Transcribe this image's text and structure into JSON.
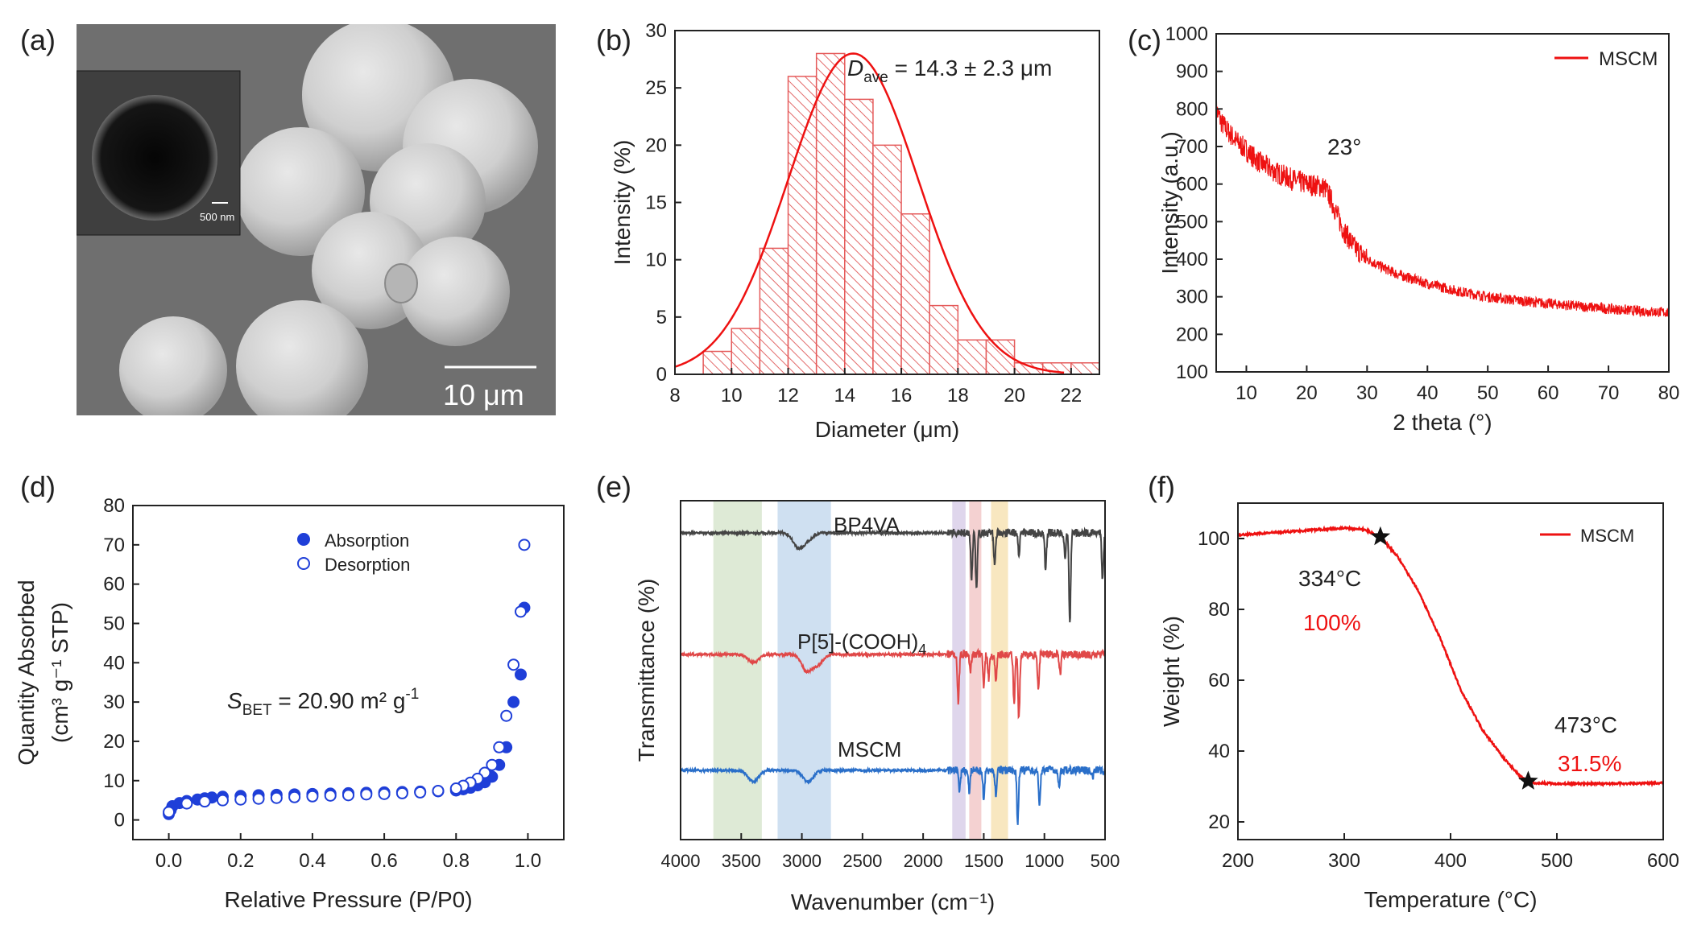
{
  "panels": {
    "a": {
      "label": "(a)",
      "scalebar": "10 μm",
      "inset_scalebar": "500 nm"
    },
    "b": {
      "label": "(b)",
      "annotation_main": "D",
      "annotation_sub": "ave",
      "annotation_rest": " = 14.3 ± 2.3 μm"
    },
    "c": {
      "label": "(c)",
      "annotation": "23°"
    },
    "d": {
      "label": "(d)",
      "annotation_main": "S",
      "annotation_sub": "BET",
      "annotation_rest": " = 20.90 m² g",
      "annotation_sup": "-1"
    },
    "e": {
      "label": "(e)"
    },
    "f": {
      "label": "(f)",
      "annotations": {
        "p1_temp": "334°C",
        "p1_pct": "100%",
        "p2_temp": "473°C",
        "p2_pct": "31.5%"
      }
    }
  },
  "colors": {
    "red": "#ee1111",
    "blue_marker": "#1f3fd8",
    "black": "#222222",
    "ftir_red": "#e04848",
    "ftir_blue": "#2a6fc9",
    "ftir_black": "#444444"
  },
  "chart_data": [
    {
      "panel": "b",
      "type": "bar",
      "xlabel": "Diameter (μm)",
      "ylabel": "Intensity (%)",
      "xlim": [
        8,
        23
      ],
      "ylim": [
        0,
        30
      ],
      "xticks": [
        8,
        10,
        12,
        14,
        16,
        18,
        20,
        22
      ],
      "yticks": [
        0,
        5,
        10,
        15,
        20,
        25,
        30
      ],
      "bins": [
        [
          9,
          10
        ],
        [
          10,
          11
        ],
        [
          11,
          12
        ],
        [
          12,
          13
        ],
        [
          13,
          14
        ],
        [
          14,
          15
        ],
        [
          15,
          16
        ],
        [
          16,
          17
        ],
        [
          17,
          18
        ],
        [
          18,
          19
        ],
        [
          19,
          20
        ],
        [
          20,
          21
        ],
        [
          21,
          22
        ],
        [
          22,
          23
        ]
      ],
      "values": [
        2,
        4,
        11,
        26,
        28,
        24,
        20,
        14,
        6,
        3,
        3,
        1,
        1,
        1
      ],
      "fit": {
        "type": "gaussian",
        "mean": 14.3,
        "peak": 28,
        "sigma": 2.3
      }
    },
    {
      "panel": "c",
      "type": "line",
      "xlabel": "2 theta (°)",
      "ylabel": "Intensity (a.u.)",
      "xlim": [
        5,
        80
      ],
      "ylim": [
        100,
        1000
      ],
      "xticks": [
        10,
        20,
        30,
        40,
        50,
        60,
        70,
        80
      ],
      "yticks": [
        100,
        200,
        300,
        400,
        500,
        600,
        700,
        800,
        900,
        1000
      ],
      "legend": [
        "MSCM"
      ],
      "series": [
        {
          "name": "MSCM",
          "x": [
            5,
            6,
            8,
            10,
            12,
            15,
            18,
            20,
            22,
            23,
            24,
            25,
            26,
            28,
            30,
            33,
            35,
            40,
            45,
            50,
            55,
            60,
            65,
            70,
            75,
            80
          ],
          "y": [
            800,
            760,
            720,
            690,
            660,
            630,
            610,
            600,
            595,
            590,
            560,
            520,
            480,
            430,
            400,
            375,
            360,
            335,
            315,
            300,
            290,
            282,
            275,
            268,
            262,
            258
          ]
        }
      ]
    },
    {
      "panel": "d",
      "type": "scatter",
      "xlabel": "Relative Pressure (P/P0)",
      "ylabel_line1": "Quantity Absorbed",
      "ylabel_line2": "(cm³ g⁻¹ STP)",
      "xlim": [
        -0.1,
        1.1
      ],
      "ylim": [
        -5,
        80
      ],
      "xticks": [
        0.0,
        0.2,
        0.4,
        0.6,
        0.8,
        1.0
      ],
      "yticks": [
        0,
        10,
        20,
        30,
        40,
        50,
        60,
        70,
        80
      ],
      "series": [
        {
          "name": "Absorption",
          "filled": true,
          "x": [
            0.0,
            0.005,
            0.01,
            0.03,
            0.05,
            0.08,
            0.1,
            0.12,
            0.15,
            0.2,
            0.25,
            0.3,
            0.35,
            0.4,
            0.45,
            0.5,
            0.55,
            0.6,
            0.65,
            0.7,
            0.75,
            0.8,
            0.82,
            0.84,
            0.86,
            0.88,
            0.9,
            0.92,
            0.94,
            0.96,
            0.98,
            0.99
          ],
          "y": [
            1.5,
            2.5,
            3.5,
            4.3,
            4.8,
            5.2,
            5.5,
            5.7,
            5.9,
            6.1,
            6.3,
            6.4,
            6.5,
            6.6,
            6.7,
            6.8,
            6.9,
            7.0,
            7.1,
            7.2,
            7.3,
            7.5,
            7.8,
            8.2,
            8.8,
            9.6,
            11,
            14,
            18.5,
            30,
            37,
            54
          ]
        },
        {
          "name": "Desorption",
          "filled": false,
          "x": [
            0.99,
            0.98,
            0.96,
            0.94,
            0.92,
            0.9,
            0.88,
            0.86,
            0.84,
            0.82,
            0.8,
            0.75,
            0.7,
            0.65,
            0.6,
            0.55,
            0.5,
            0.45,
            0.4,
            0.35,
            0.3,
            0.25,
            0.2,
            0.15,
            0.1,
            0.05,
            0.0
          ],
          "y": [
            70,
            53,
            39.5,
            26.5,
            18.5,
            14,
            12,
            10.5,
            9.5,
            8.7,
            8.0,
            7.4,
            7.0,
            6.8,
            6.6,
            6.5,
            6.3,
            6.2,
            6.0,
            5.8,
            5.6,
            5.4,
            5.2,
            5.0,
            4.7,
            4.2,
            2.0
          ]
        }
      ]
    },
    {
      "panel": "e",
      "type": "line",
      "xlabel": "Wavenumber (cm⁻¹)",
      "ylabel": "Transmittance (%)",
      "xlim": [
        4000,
        500
      ],
      "xticks": [
        4000,
        3500,
        3000,
        2500,
        2000,
        1500,
        1000,
        500
      ],
      "highlight_bands": [
        {
          "from": 3730,
          "to": 3330,
          "color": "#d8e6cf"
        },
        {
          "from": 3200,
          "to": 2760,
          "color": "#c7dbef"
        },
        {
          "from": 1760,
          "to": 1650,
          "color": "#d9cfe9"
        },
        {
          "from": 1620,
          "to": 1520,
          "color": "#f2c9c9"
        },
        {
          "from": 1440,
          "to": 1300,
          "color": "#f7e3b5"
        }
      ],
      "series": [
        {
          "name": "BP4VA",
          "offset": 0,
          "dips": [
            [
              3030,
              18
            ],
            [
              2950,
              8
            ],
            [
              1600,
              55
            ],
            [
              1560,
              70
            ],
            [
              1410,
              40
            ],
            [
              1210,
              25
            ],
            [
              990,
              45
            ],
            [
              830,
              30
            ],
            [
              790,
              110
            ],
            [
              520,
              60
            ]
          ]
        },
        {
          "name": "P[5]-(COOH)₄",
          "offset": 1,
          "dips": [
            [
              3400,
              10
            ],
            [
              2960,
              20
            ],
            [
              2870,
              12
            ],
            [
              1710,
              60
            ],
            [
              1610,
              20
            ],
            [
              1500,
              40
            ],
            [
              1460,
              30
            ],
            [
              1400,
              35
            ],
            [
              1250,
              60
            ],
            [
              1210,
              80
            ],
            [
              1050,
              45
            ],
            [
              870,
              25
            ]
          ]
        },
        {
          "name": "MSCM",
          "offset": 2,
          "dips": [
            [
              3400,
              14
            ],
            [
              2950,
              14
            ],
            [
              1700,
              25
            ],
            [
              1620,
              25
            ],
            [
              1500,
              35
            ],
            [
              1400,
              30
            ],
            [
              1220,
              65
            ],
            [
              1040,
              45
            ],
            [
              880,
              20
            ],
            [
              600,
              10
            ]
          ]
        }
      ]
    },
    {
      "panel": "f",
      "type": "line",
      "xlabel": "Temperature (°C)",
      "ylabel": "Weight (%)",
      "xlim": [
        200,
        600
      ],
      "ylim": [
        15,
        110
      ],
      "xticks": [
        200,
        300,
        400,
        500,
        600
      ],
      "yticks": [
        20,
        40,
        60,
        80,
        100
      ],
      "legend": [
        "MSCM"
      ],
      "series": [
        {
          "name": "MSCM",
          "x": [
            200,
            250,
            300,
            320,
            334,
            350,
            370,
            390,
            410,
            430,
            450,
            465,
            473,
            480,
            500,
            550,
            600
          ],
          "y": [
            101,
            102,
            103,
            102.5,
            100.5,
            95,
            85,
            72,
            57,
            46,
            38,
            33,
            31.5,
            31,
            30.8,
            30.8,
            31
          ]
        }
      ],
      "markers": [
        {
          "x": 334,
          "y": 100.5
        },
        {
          "x": 473,
          "y": 31.5
        }
      ]
    }
  ]
}
